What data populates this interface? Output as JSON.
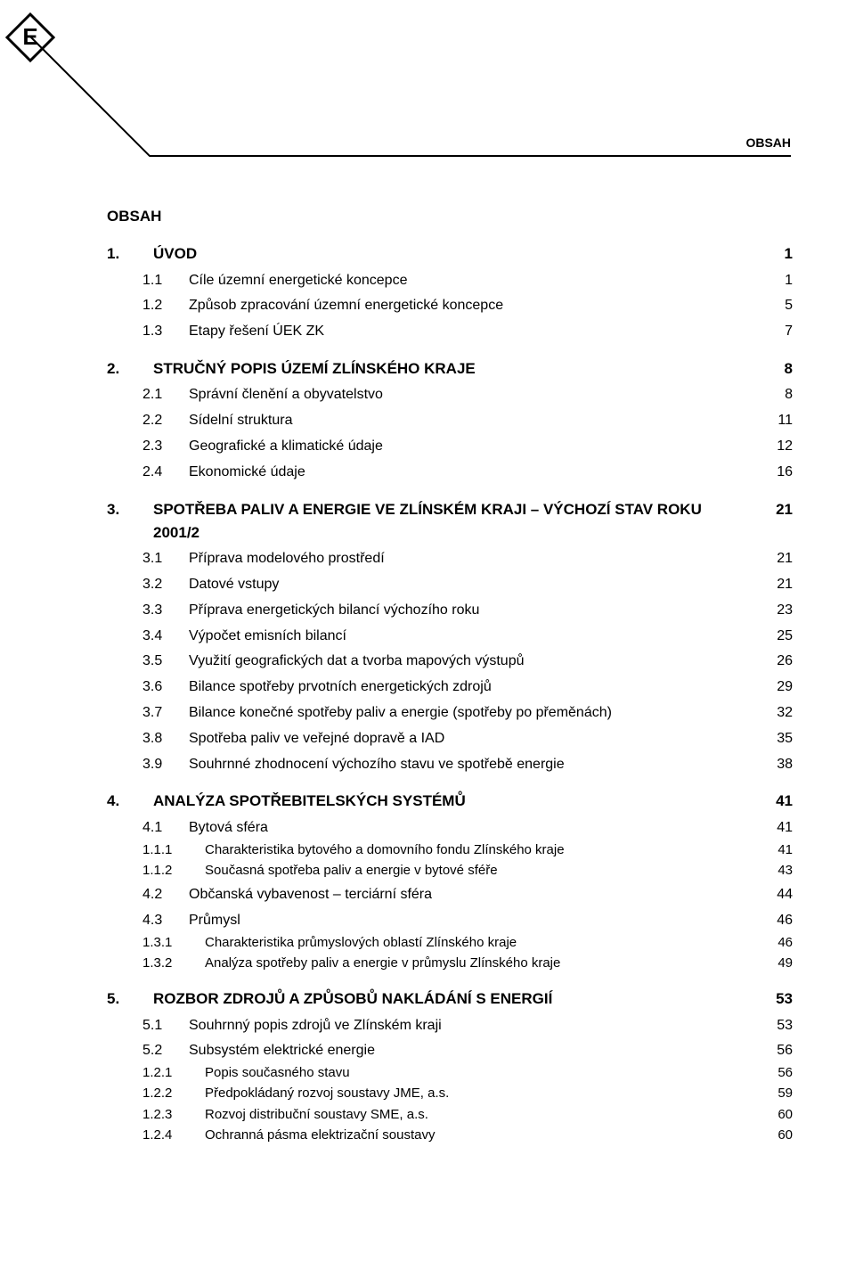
{
  "header_label": "OBSAH",
  "title": "OBSAH",
  "title_fontsize": 17,
  "body_fontsize": 16,
  "sub_fontsize": 15,
  "colors": {
    "text": "#000000",
    "background": "#ffffff",
    "rule": "#000000"
  },
  "sections": [
    {
      "num": "1.",
      "title": "ÚVOD",
      "page": "1",
      "children": [
        {
          "num": "1.1",
          "title": "Cíle územní energetické koncepce",
          "page": "1"
        },
        {
          "num": "1.2",
          "title": "Způsob zpracování územní energetické koncepce",
          "page": "5"
        },
        {
          "num": "1.3",
          "title": "Etapy řešení ÚEK ZK",
          "page": "7"
        }
      ]
    },
    {
      "num": "2.",
      "title": "STRUČNÝ POPIS ÚZEMÍ ZLÍNSKÉHO KRAJE",
      "page": "8",
      "children": [
        {
          "num": "2.1",
          "title": "Správní členění a obyvatelstvo",
          "page": "8"
        },
        {
          "num": "2.2",
          "title": "Sídelní struktura",
          "page": "11"
        },
        {
          "num": "2.3",
          "title": "Geografické a klimatické údaje",
          "page": "12"
        },
        {
          "num": "2.4",
          "title": "Ekonomické údaje",
          "page": "16"
        }
      ]
    },
    {
      "num": "3.",
      "title": "SPOTŘEBA PALIV A ENERGIE VE ZLÍNSKÉM KRAJI – VÝCHOZÍ STAV ROKU 2001/2",
      "page": "21",
      "children": [
        {
          "num": "3.1",
          "title": "Příprava modelového prostředí",
          "page": "21"
        },
        {
          "num": "3.2",
          "title": "Datové vstupy",
          "page": "21"
        },
        {
          "num": "3.3",
          "title": "Příprava energetických bilancí výchozího roku",
          "page": "23"
        },
        {
          "num": "3.4",
          "title": "Výpočet emisních bilancí",
          "page": "25"
        },
        {
          "num": "3.5",
          "title": "Využití geografických dat a tvorba mapových výstupů",
          "page": "26"
        },
        {
          "num": "3.6",
          "title": "Bilance spotřeby prvotních energetických zdrojů",
          "page": "29"
        },
        {
          "num": "3.7",
          "title": "Bilance konečné spotřeby paliv a energie (spotřeby po přeměnách)",
          "page": "32"
        },
        {
          "num": "3.8",
          "title": "Spotřeba paliv ve veřejné dopravě a IAD",
          "page": "35"
        },
        {
          "num": "3.9",
          "title": "Souhrnné zhodnocení výchozího stavu ve spotřebě energie",
          "page": "38"
        }
      ]
    },
    {
      "num": "4.",
      "title": "ANALÝZA SPOTŘEBITELSKÝCH SYSTÉMŮ",
      "page": "41",
      "children": [
        {
          "num": "4.1",
          "title": "Bytová sféra",
          "page": "41",
          "children": [
            {
              "num": "1.1.1",
              "title": "Charakteristika bytového a domovního fondu Zlínského kraje",
              "page": "41"
            },
            {
              "num": "1.1.2",
              "title": "Současná spotřeba paliv a energie v bytové sféře",
              "page": "43"
            }
          ]
        },
        {
          "num": "4.2",
          "title": "Občanská vybavenost – terciární sféra",
          "page": "44"
        },
        {
          "num": "4.3",
          "title": "Průmysl",
          "page": "46",
          "children": [
            {
              "num": "1.3.1",
              "title": "Charakteristika průmyslových oblastí Zlínského kraje",
              "page": "46"
            },
            {
              "num": "1.3.2",
              "title": "Analýza spotřeby paliv a energie v průmyslu Zlínského kraje",
              "page": "49"
            }
          ]
        }
      ]
    },
    {
      "num": "5.",
      "title": "ROZBOR ZDROJŮ A ZPŮSOBŮ NAKLÁDÁNÍ S ENERGIÍ",
      "page": "53",
      "children": [
        {
          "num": "5.1",
          "title": "Souhrnný popis zdrojů ve Zlínském kraji",
          "page": "53"
        },
        {
          "num": "5.2",
          "title": "Subsystém elektrické energie",
          "page": "56",
          "children": [
            {
              "num": "1.2.1",
              "title": "Popis současného stavu",
              "page": "56"
            },
            {
              "num": "1.2.2",
              "title": "Předpokládaný rozvoj soustavy JME, a.s.",
              "page": "59"
            },
            {
              "num": "1.2.3",
              "title": "Rozvoj distribuční soustavy SME, a.s.",
              "page": "60"
            },
            {
              "num": "1.2.4",
              "title": "Ochranná pásma elektrizační soustavy",
              "page": "60"
            }
          ]
        }
      ]
    }
  ]
}
